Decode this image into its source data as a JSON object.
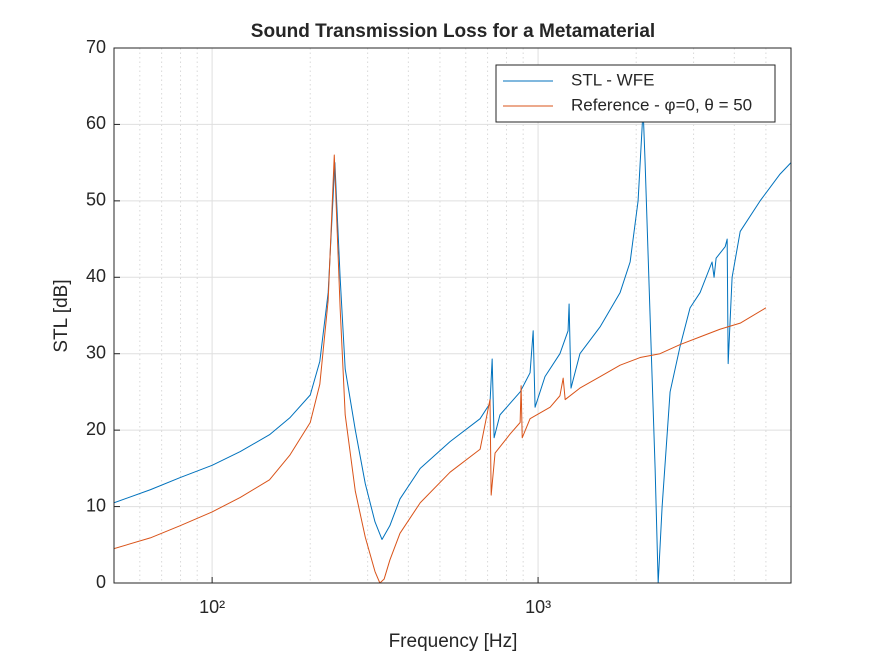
{
  "chart_data": {
    "type": "line",
    "title": "Sound Transmission Loss for a Metamaterial",
    "xlabel": "Frequency [Hz]",
    "ylabel": "STL [dB]",
    "xscale": "log",
    "xlim": [
      50,
      5970
    ],
    "ylim": [
      0,
      70
    ],
    "xticks": [
      {
        "value": 100,
        "label": "10²"
      },
      {
        "value": 1000,
        "label": "10³"
      }
    ],
    "xminorticks": [
      60,
      70,
      80,
      90,
      200,
      300,
      400,
      500,
      600,
      700,
      800,
      900,
      2000,
      3000,
      4000,
      5000
    ],
    "yticks": [
      0,
      10,
      20,
      30,
      40,
      50,
      60,
      70
    ],
    "grid": true,
    "legend_location": "northeast",
    "series": [
      {
        "name": "STL - WFE",
        "color": "#0072BD",
        "x": [
          50,
          64.6,
          79.8,
          100,
          122,
          150,
          173,
          200,
          214,
          227,
          238,
          247,
          256,
          275,
          295,
          316,
          332,
          351,
          377,
          435,
          537,
          664,
          712,
          723,
          733,
          764,
          881,
          945,
          966,
          979,
          1050,
          1167,
          1236,
          1245,
          1262,
          1344,
          1549,
          1785,
          1916,
          2027,
          2100,
          2130,
          2206,
          2286,
          2336,
          2402,
          2541,
          2728,
          2926,
          3141,
          3418,
          3467,
          3517,
          3750,
          3803,
          3830,
          3938,
          4170,
          4800,
          5525,
          5970
        ],
        "values": [
          10.5,
          12.2,
          13.8,
          15.4,
          17.2,
          19.4,
          21.6,
          24.6,
          29,
          38,
          55,
          40,
          28,
          20,
          13,
          8,
          5.7,
          7.5,
          11,
          15,
          18.5,
          21.5,
          23.5,
          29.3,
          19,
          22,
          25,
          27.5,
          33,
          23,
          27,
          30,
          33,
          36.5,
          25.5,
          30,
          33.5,
          38,
          42,
          50,
          62,
          55,
          35,
          15,
          0,
          10,
          25,
          31,
          36,
          38,
          42,
          40,
          42.5,
          44,
          45,
          28.7,
          40,
          46,
          50,
          53.5,
          55
        ]
      },
      {
        "name": "Reference - φ=0, θ = 50",
        "color": "#D95319",
        "x": [
          50,
          64.6,
          79.8,
          100,
          122,
          150,
          173,
          200,
          214,
          227,
          237,
          247,
          256,
          275,
          295,
          316,
          327,
          337,
          351,
          377,
          435,
          537,
          664,
          712,
          718,
          738,
          821,
          881,
          887,
          894,
          945,
          1089,
          1167,
          1194,
          1211,
          1344,
          1549,
          1785,
          2056,
          2366,
          2728,
          3141,
          3614,
          4170,
          5000
        ],
        "values": [
          4.5,
          5.9,
          7.5,
          9.3,
          11.2,
          13.5,
          16.7,
          21,
          26,
          37,
          56,
          36,
          22,
          12,
          6,
          1.5,
          0,
          0.5,
          3,
          6.5,
          10.5,
          14.5,
          17.5,
          24,
          11.5,
          17,
          19.5,
          21,
          25.8,
          19,
          21.5,
          23,
          24.5,
          26.8,
          24,
          25.5,
          27,
          28.5,
          29.5,
          30,
          31.2,
          32.2,
          33.2,
          34,
          36
        ]
      }
    ]
  }
}
